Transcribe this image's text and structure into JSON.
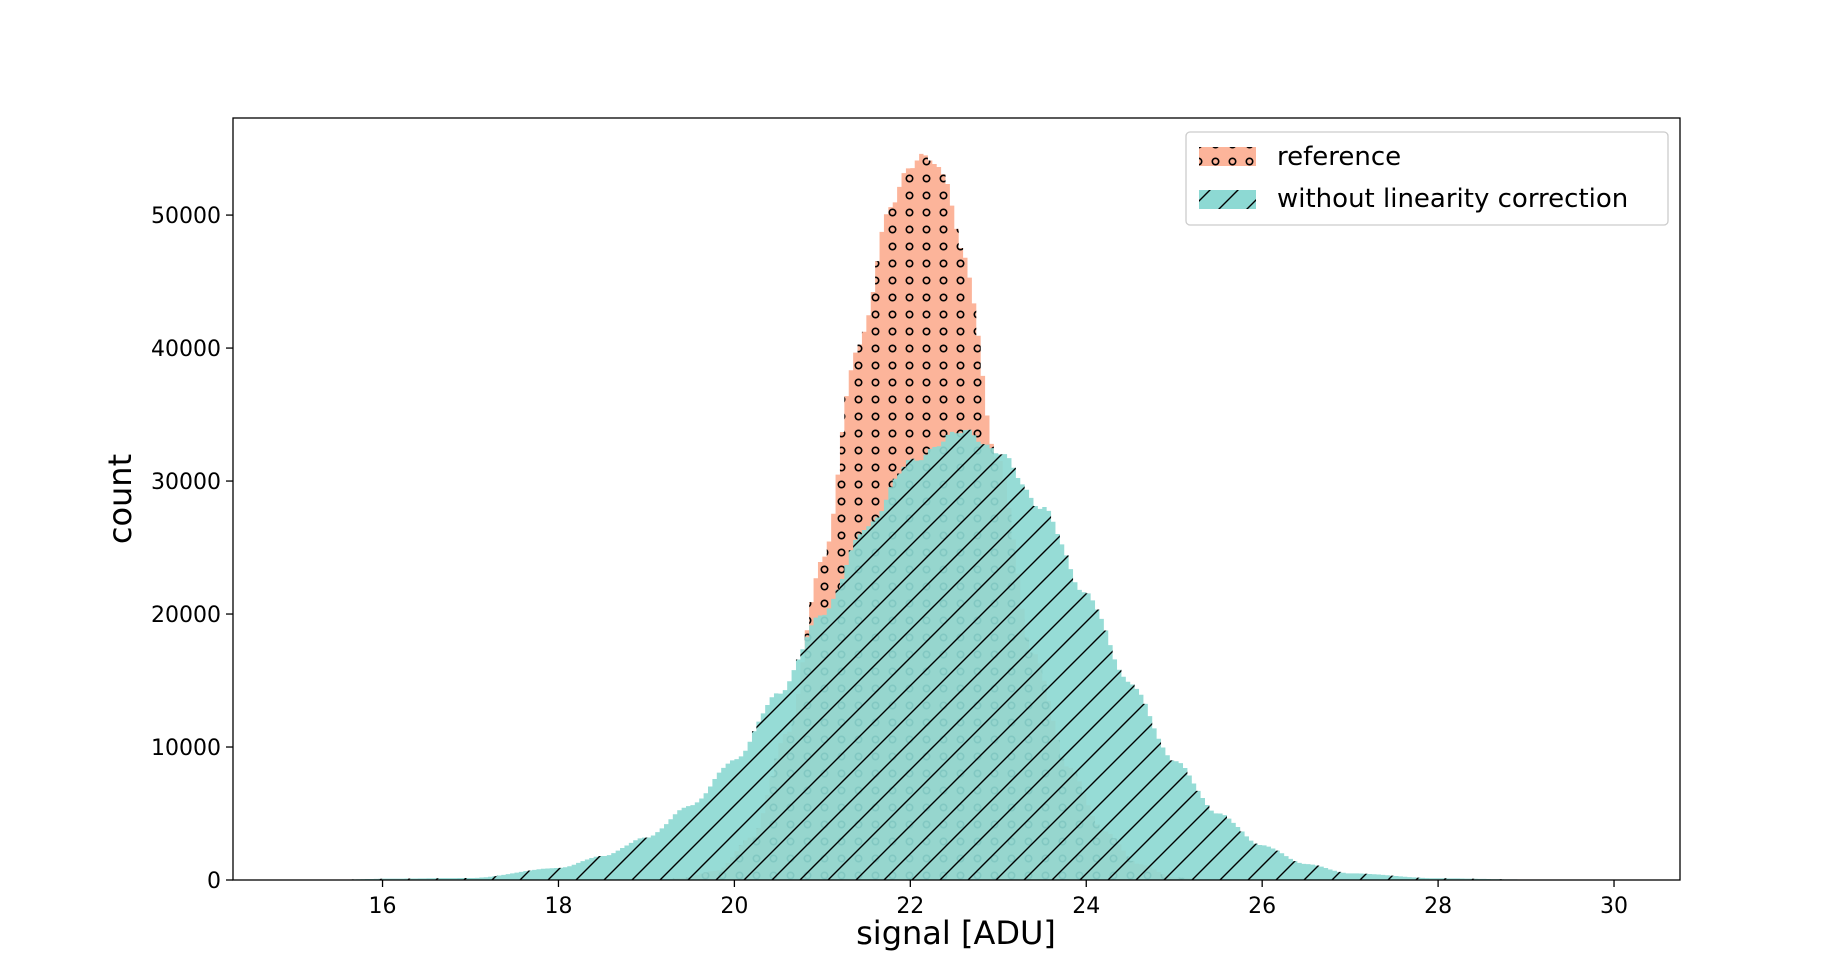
{
  "chart_data": {
    "type": "histogram",
    "title": "",
    "xlabel": "signal [ADU]",
    "ylabel": "count",
    "xlim": [
      14.3,
      30.75
    ],
    "ylim": [
      0,
      57300
    ],
    "xticks": [
      16,
      18,
      20,
      22,
      24,
      26,
      28,
      30
    ],
    "yticks": [
      0,
      10000,
      20000,
      30000,
      40000,
      50000
    ],
    "grid": false,
    "legend_position": "upper right",
    "series": [
      {
        "name": "reference",
        "color": "#fcb49a",
        "hatch": "circles",
        "bin_range": [
          19.3,
          25.2
        ],
        "peak_x": 22.2,
        "peak_count": 54500,
        "x": [
          19.4,
          19.8,
          20.2,
          20.6,
          21.0,
          21.4,
          21.8,
          22.0,
          22.2,
          22.4,
          22.6,
          23.0,
          23.4,
          23.8,
          24.2,
          24.6,
          25.0
        ],
        "counts": [
          150,
          700,
          3200,
          11000,
          24000,
          40000,
          51000,
          53800,
          54500,
          52800,
          47000,
          31500,
          17000,
          8500,
          3700,
          1200,
          200
        ]
      },
      {
        "name": "without linearity correction",
        "color": "#8dd9d3",
        "hatch": "diagonal",
        "bin_range": [
          15.5,
          30.0
        ],
        "peak_x": 22.6,
        "peak_count": 33800,
        "x": [
          16.0,
          17.0,
          18.0,
          18.5,
          19.0,
          19.5,
          20.0,
          20.5,
          21.0,
          21.5,
          22.0,
          22.6,
          23.0,
          23.5,
          24.0,
          24.5,
          25.0,
          25.5,
          26.0,
          26.5,
          27.0,
          28.0,
          29.0,
          30.0
        ],
        "counts": [
          100,
          150,
          900,
          1800,
          3200,
          5600,
          9000,
          14000,
          20000,
          26500,
          31500,
          33800,
          32200,
          28000,
          21500,
          14800,
          9000,
          5000,
          2600,
          1200,
          500,
          130,
          40,
          10
        ]
      }
    ]
  }
}
